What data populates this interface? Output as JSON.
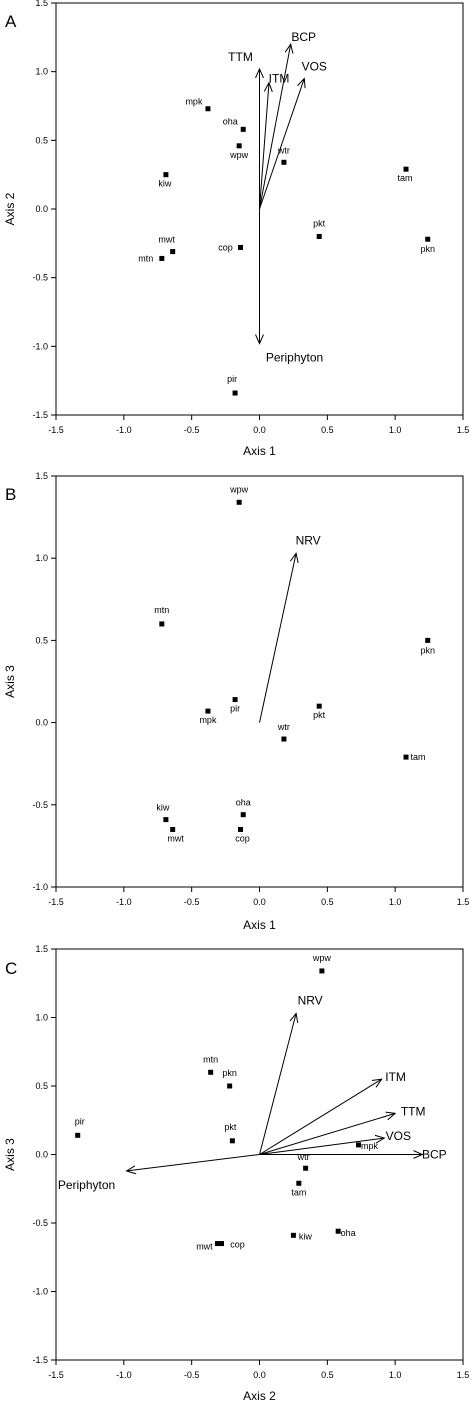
{
  "chart_data": [
    {
      "type": "scatter",
      "panel": "A",
      "xlabel": "Axis 1",
      "ylabel": "Axis 2",
      "xlim": [
        -1.5,
        1.5
      ],
      "ylim": [
        -1.5,
        1.5
      ],
      "xticks": [
        "-1.5",
        "-1.0",
        "-0.5",
        "0.0",
        "0.5",
        "1.0",
        "1.5"
      ],
      "yticks": [
        "-1.5",
        "-1.0",
        "-0.5",
        "0.0",
        "0.5",
        "1.0",
        "1.5"
      ],
      "points": [
        {
          "label": "mpk",
          "x": -0.38,
          "y": 0.73
        },
        {
          "label": "oha",
          "x": -0.12,
          "y": 0.58
        },
        {
          "label": "wpw",
          "x": -0.15,
          "y": 0.46
        },
        {
          "label": "wtr",
          "x": 0.18,
          "y": 0.34
        },
        {
          "label": "tam",
          "x": 1.08,
          "y": 0.29
        },
        {
          "label": "kiw",
          "x": -0.69,
          "y": 0.25
        },
        {
          "label": "pkt",
          "x": 0.44,
          "y": -0.2
        },
        {
          "label": "pkn",
          "x": 1.24,
          "y": -0.22
        },
        {
          "label": "cop",
          "x": -0.14,
          "y": -0.28
        },
        {
          "label": "mwt",
          "x": -0.64,
          "y": -0.31
        },
        {
          "label": "mtn",
          "x": -0.72,
          "y": -0.36
        },
        {
          "label": "pir",
          "x": -0.18,
          "y": -1.34
        }
      ],
      "vectors": [
        {
          "label": "BCP",
          "x": 0.23,
          "y": 1.2
        },
        {
          "label": "TTM",
          "x": 0.0,
          "y": 1.02
        },
        {
          "label": "ITM",
          "x": 0.07,
          "y": 0.92
        },
        {
          "label": "VOS",
          "x": 0.33,
          "y": 0.95
        },
        {
          "label": "Periphyton",
          "x": 0.0,
          "y": -0.98
        }
      ]
    },
    {
      "type": "scatter",
      "panel": "B",
      "xlabel": "Axis 1",
      "ylabel": "Axis 3",
      "xlim": [
        -1.5,
        1.5
      ],
      "ylim": [
        -1.0,
        1.5
      ],
      "xticks": [
        "-1.5",
        "-1.0",
        "-0.5",
        "0.0",
        "0.5",
        "1.0",
        "1.5"
      ],
      "yticks": [
        "-1.0",
        "-0.5",
        "0.0",
        "0.5",
        "1.0",
        "1.5"
      ],
      "points": [
        {
          "label": "wpw",
          "x": -0.15,
          "y": 1.34
        },
        {
          "label": "mtn",
          "x": -0.72,
          "y": 0.6
        },
        {
          "label": "pkn",
          "x": 1.24,
          "y": 0.5
        },
        {
          "label": "pir",
          "x": -0.18,
          "y": 0.14
        },
        {
          "label": "pkt",
          "x": 0.44,
          "y": 0.1
        },
        {
          "label": "mpk",
          "x": -0.38,
          "y": 0.07
        },
        {
          "label": "wtr",
          "x": 0.18,
          "y": -0.1
        },
        {
          "label": "tam",
          "x": 1.08,
          "y": -0.21
        },
        {
          "label": "oha",
          "x": -0.12,
          "y": -0.56
        },
        {
          "label": "kiw",
          "x": -0.69,
          "y": -0.59
        },
        {
          "label": "mwt",
          "x": -0.64,
          "y": -0.65
        },
        {
          "label": "cop",
          "x": -0.14,
          "y": -0.65
        }
      ],
      "vectors": [
        {
          "label": "NRV",
          "x": 0.27,
          "y": 1.03
        }
      ]
    },
    {
      "type": "scatter",
      "panel": "C",
      "xlabel": "Axis 2",
      "ylabel": "Axis 3",
      "xlim": [
        -1.5,
        1.5
      ],
      "ylim": [
        -1.5,
        1.5
      ],
      "xticks": [
        "-1.5",
        "-1.0",
        "-0.5",
        "0.0",
        "0.5",
        "1.0",
        "1.5"
      ],
      "yticks": [
        "-1.5",
        "-1.0",
        "-0.5",
        "0.0",
        "0.5",
        "1.0",
        "1.5"
      ],
      "points": [
        {
          "label": "wpw",
          "x": 0.46,
          "y": 1.34
        },
        {
          "label": "mtn",
          "x": -0.36,
          "y": 0.6
        },
        {
          "label": "pkn",
          "x": -0.22,
          "y": 0.5
        },
        {
          "label": "pir",
          "x": -1.34,
          "y": 0.14
        },
        {
          "label": "pkt",
          "x": -0.2,
          "y": 0.1
        },
        {
          "label": "mpk",
          "x": 0.73,
          "y": 0.07
        },
        {
          "label": "wtr",
          "x": 0.34,
          "y": -0.1
        },
        {
          "label": "tam",
          "x": 0.29,
          "y": -0.21
        },
        {
          "label": "oha",
          "x": 0.58,
          "y": -0.56
        },
        {
          "label": "kiw",
          "x": 0.25,
          "y": -0.59
        },
        {
          "label": "mwt",
          "x": -0.31,
          "y": -0.65
        },
        {
          "label": "cop",
          "x": -0.28,
          "y": -0.65
        }
      ],
      "vectors": [
        {
          "label": "NRV",
          "x": 0.27,
          "y": 1.03
        },
        {
          "label": "ITM",
          "x": 0.9,
          "y": 0.55
        },
        {
          "label": "TTM",
          "x": 1.0,
          "y": 0.3
        },
        {
          "label": "VOS",
          "x": 0.92,
          "y": 0.12
        },
        {
          "label": "BCP",
          "x": 1.2,
          "y": 0.0
        },
        {
          "label": "Periphyton",
          "x": -0.98,
          "y": -0.12
        }
      ]
    }
  ]
}
